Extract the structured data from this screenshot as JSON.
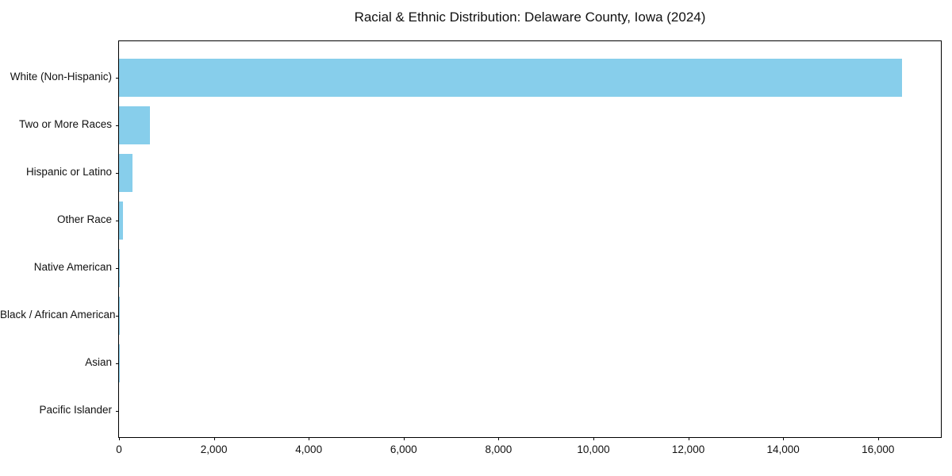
{
  "figure": {
    "background_color": "#ffffff",
    "axis_color": "#000000",
    "text_color": "#111111"
  },
  "chart_data": {
    "type": "bar",
    "orientation": "horizontal",
    "title": "Racial & Ethnic Distribution: Delaware County, Iowa (2024)",
    "categories": [
      "White (Non-Hispanic)",
      "Two or More Races",
      "Hispanic or Latino",
      "Other Race",
      "Native American",
      "Black / African American",
      "Asian",
      "Pacific Islander"
    ],
    "values": [
      16500,
      650,
      290,
      85,
      18,
      8,
      4,
      0
    ],
    "bar_color": "#87CEEB",
    "xlabel": "",
    "ylabel": "",
    "xlim": [
      0,
      17325
    ],
    "xticks": [
      0,
      2000,
      4000,
      6000,
      8000,
      10000,
      12000,
      14000,
      16000
    ],
    "xtick_labels": [
      "0",
      "2,000",
      "4,000",
      "6,000",
      "8,000",
      "10,000",
      "12,000",
      "14,000",
      "16,000"
    ],
    "grid": false,
    "legend": "none",
    "category_order": "top-to-bottom descending by value"
  }
}
